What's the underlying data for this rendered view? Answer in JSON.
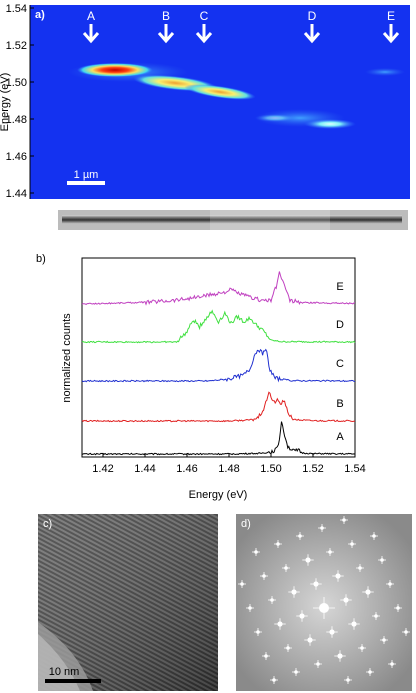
{
  "panel_a": {
    "label": "a)",
    "ylabel": "Energy (eV)",
    "yticks": [
      "1.54",
      "1.52",
      "1.50",
      "1.48",
      "1.46",
      "1.44"
    ],
    "scalebar": "1 µm",
    "markers": [
      "A",
      "B",
      "C",
      "D",
      "E"
    ],
    "colors": {
      "background": "#1432f0",
      "hot": "#d01010",
      "warm": "#f8e060",
      "mid": "#40d8f0"
    }
  },
  "panel_b": {
    "label": "b)",
    "xlabel": "Energy (eV)",
    "ylabel": "normalized counts",
    "xticks": [
      "1.42",
      "1.44",
      "1.46",
      "1.48",
      "1.50",
      "1.52",
      "1.54"
    ]
  },
  "panel_c": {
    "label": "c)",
    "scalebar": "10 nm"
  },
  "panel_d": {
    "label": "d)"
  },
  "chart_data": [
    {
      "type": "heatmap",
      "ylabel": "Energy (eV)",
      "ylim": [
        1.44,
        1.54
      ],
      "emission_points": [
        {
          "name": "A",
          "energy": 1.507
        },
        {
          "name": "B",
          "energy": 1.5
        },
        {
          "name": "C",
          "energy": 1.494
        },
        {
          "name": "D",
          "energy": 1.477
        },
        {
          "name": "E",
          "energy": 1.505
        }
      ]
    },
    {
      "type": "line",
      "xlabel": "Energy (eV)",
      "ylabel": "normalized counts",
      "xlim": [
        1.41,
        1.54
      ],
      "series": [
        {
          "name": "A",
          "color": "#000000",
          "points": [
            [
              1.41,
              0
            ],
            [
              1.48,
              0
            ],
            [
              1.495,
              0.02
            ],
            [
              1.5,
              0.06
            ],
            [
              1.503,
              0.16
            ],
            [
              1.504,
              0.45
            ],
            [
              1.505,
              0.95
            ],
            [
              1.506,
              0.7
            ],
            [
              1.508,
              0.22
            ],
            [
              1.511,
              0.08
            ],
            [
              1.513,
              0.1
            ],
            [
              1.515,
              0.03
            ],
            [
              1.52,
              0.01
            ],
            [
              1.54,
              0
            ]
          ]
        },
        {
          "name": "B",
          "color": "#e02020",
          "points": [
            [
              1.41,
              0
            ],
            [
              1.48,
              0
            ],
            [
              1.49,
              0.03
            ],
            [
              1.494,
              0.1
            ],
            [
              1.497,
              0.4
            ],
            [
              1.499,
              0.88
            ],
            [
              1.501,
              0.55
            ],
            [
              1.503,
              0.6
            ],
            [
              1.505,
              0.5
            ],
            [
              1.506,
              0.62
            ],
            [
              1.508,
              0.25
            ],
            [
              1.511,
              0.04
            ],
            [
              1.52,
              0.01
            ],
            [
              1.54,
              0
            ]
          ]
        },
        {
          "name": "C",
          "color": "#2030d0",
          "points": [
            [
              1.41,
              0
            ],
            [
              1.47,
              0
            ],
            [
              1.48,
              0.06
            ],
            [
              1.487,
              0.18
            ],
            [
              1.49,
              0.35
            ],
            [
              1.492,
              0.75
            ],
            [
              1.494,
              0.95
            ],
            [
              1.496,
              0.8
            ],
            [
              1.498,
              0.9
            ],
            [
              1.499,
              0.4
            ],
            [
              1.502,
              0.08
            ],
            [
              1.51,
              0.01
            ],
            [
              1.54,
              0
            ]
          ]
        },
        {
          "name": "D",
          "color": "#40e040",
          "points": [
            [
              1.41,
              0
            ],
            [
              1.455,
              0
            ],
            [
              1.46,
              0.3
            ],
            [
              1.463,
              0.65
            ],
            [
              1.466,
              0.45
            ],
            [
              1.469,
              0.7
            ],
            [
              1.472,
              0.9
            ],
            [
              1.475,
              0.6
            ],
            [
              1.478,
              0.85
            ],
            [
              1.481,
              0.55
            ],
            [
              1.484,
              0.75
            ],
            [
              1.487,
              0.6
            ],
            [
              1.49,
              0.7
            ],
            [
              1.493,
              0.5
            ],
            [
              1.496,
              0.35
            ],
            [
              1.5,
              0.05
            ],
            [
              1.505,
              0.01
            ],
            [
              1.54,
              0
            ]
          ]
        },
        {
          "name": "E",
          "color": "#c040c0",
          "points": [
            [
              1.41,
              0
            ],
            [
              1.44,
              0.05
            ],
            [
              1.455,
              0.12
            ],
            [
              1.465,
              0.2
            ],
            [
              1.472,
              0.28
            ],
            [
              1.478,
              0.35
            ],
            [
              1.481,
              0.42
            ],
            [
              1.485,
              0.3
            ],
            [
              1.49,
              0.2
            ],
            [
              1.495,
              0.12
            ],
            [
              1.5,
              0.1
            ],
            [
              1.503,
              0.6
            ],
            [
              1.504,
              0.95
            ],
            [
              1.506,
              0.6
            ],
            [
              1.509,
              0.1
            ],
            [
              1.515,
              0.04
            ],
            [
              1.54,
              0.02
            ]
          ]
        }
      ]
    }
  ]
}
